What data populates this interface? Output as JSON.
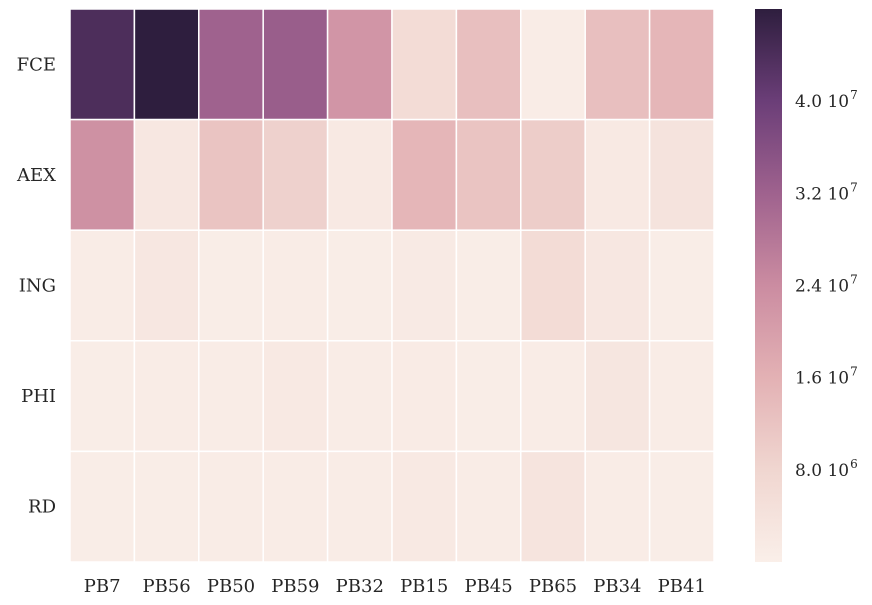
{
  "chart_data": {
    "type": "heatmap",
    "title": "",
    "xlabel": "",
    "ylabel": "",
    "x_categories": [
      "PB7",
      "PB56",
      "PB50",
      "PB59",
      "PB32",
      "PB15",
      "PB45",
      "PB65",
      "PB34",
      "PB41"
    ],
    "y_categories": [
      "FCE",
      "AEX",
      "ING",
      "PHI",
      "RD"
    ],
    "values": [
      [
        44000000,
        48000000,
        32000000,
        33000000,
        22000000,
        6000000,
        13000000,
        1000000,
        13000000,
        15000000
      ],
      [
        23000000,
        2500000,
        12000000,
        9000000,
        2000000,
        15000000,
        12000000,
        10000000,
        2000000,
        4000000
      ],
      [
        900000,
        2500000,
        600000,
        1000000,
        800000,
        1500000,
        800000,
        6000000,
        2500000,
        800000
      ],
      [
        800000,
        900000,
        1000000,
        2000000,
        900000,
        1200000,
        800000,
        1000000,
        3000000,
        900000
      ],
      [
        700000,
        800000,
        900000,
        1000000,
        900000,
        2000000,
        900000,
        3500000,
        1000000,
        800000
      ]
    ],
    "colorbar": {
      "vmin": 0,
      "vmax": 48000000,
      "ticks": [
        8000000,
        16000000,
        24000000,
        32000000,
        40000000
      ],
      "tick_labels": [
        {
          "mantissa": "8.0 10",
          "exponent": "6"
        },
        {
          "mantissa": "1.6 10",
          "exponent": "7"
        },
        {
          "mantissa": "2.4 10",
          "exponent": "7"
        },
        {
          "mantissa": "3.2 10",
          "exponent": "7"
        },
        {
          "mantissa": "4.0 10",
          "exponent": "7"
        }
      ],
      "colors": [
        "#faefe9",
        "#f0d6d0",
        "#e3b1b4",
        "#cb8ca1",
        "#9f628e",
        "#6b3e78",
        "#2e1e3e"
      ]
    }
  }
}
